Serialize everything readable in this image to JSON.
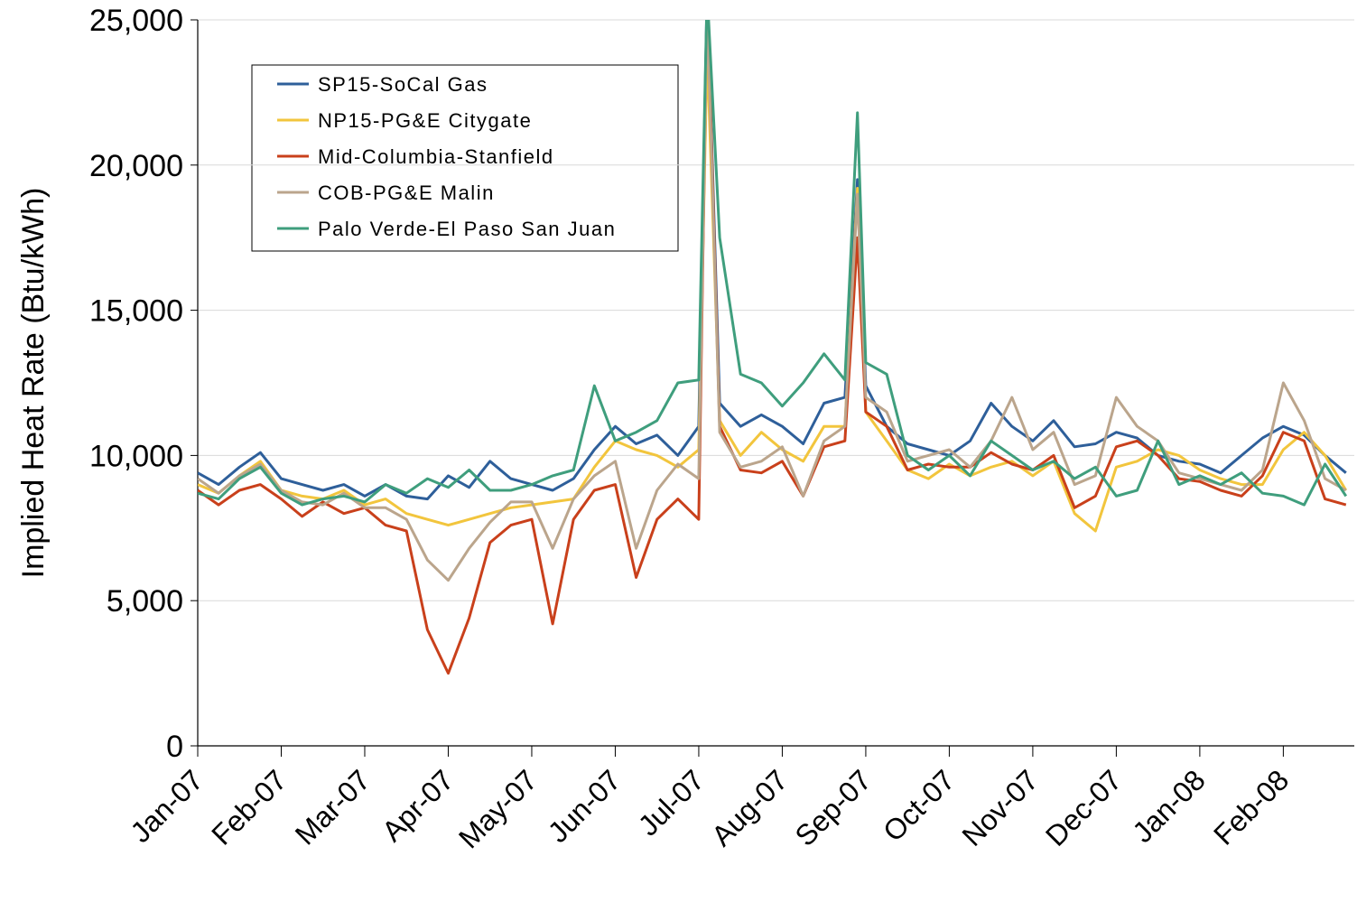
{
  "chart_data": {
    "type": "line",
    "y_label": "Implied Heat Rate (Btu/kWh)",
    "x": [
      0,
      0.25,
      0.5,
      0.75,
      1,
      1.25,
      1.5,
      1.75,
      2,
      2.25,
      2.5,
      2.75,
      3,
      3.25,
      3.5,
      3.75,
      4,
      4.25,
      4.5,
      4.75,
      5,
      5.25,
      5.5,
      5.75,
      6,
      6.1,
      6.25,
      6.5,
      6.75,
      7,
      7.25,
      7.5,
      7.75,
      7.9,
      8,
      8.25,
      8.5,
      8.75,
      9,
      9.25,
      9.5,
      9.75,
      10,
      10.25,
      10.5,
      10.75,
      11,
      11.25,
      11.5,
      11.75,
      12,
      12.25,
      12.5,
      12.75,
      13,
      13.25,
      13.5,
      13.75
    ],
    "xlim": [
      0,
      13.85
    ],
    "xticks": [
      {
        "value": 0,
        "label": "Jan-07"
      },
      {
        "value": 1,
        "label": "Feb-07"
      },
      {
        "value": 2,
        "label": "Mar-07"
      },
      {
        "value": 3,
        "label": "Apr-07"
      },
      {
        "value": 4,
        "label": "May-07"
      },
      {
        "value": 5,
        "label": "Jun-07"
      },
      {
        "value": 6,
        "label": "Jul-07"
      },
      {
        "value": 7,
        "label": "Aug-07"
      },
      {
        "value": 8,
        "label": "Sep-07"
      },
      {
        "value": 9,
        "label": "Oct-07"
      },
      {
        "value": 10,
        "label": "Nov-07"
      },
      {
        "value": 11,
        "label": "Dec-07"
      },
      {
        "value": 12,
        "label": "Jan-08"
      },
      {
        "value": 13,
        "label": "Feb-08"
      }
    ],
    "ylim": [
      0,
      25000
    ],
    "yticks": [
      0,
      {
        "value": 5000,
        "label": "5,000"
      },
      {
        "value": 10000,
        "label": "10,000"
      },
      {
        "value": 15000,
        "label": "15,000"
      },
      {
        "value": 20000,
        "label": "20,000"
      },
      {
        "value": 25000,
        "label": "25,000"
      }
    ],
    "grid": true,
    "legend": "upper-left",
    "series": [
      {
        "name": "SP15-SoCal Gas",
        "color": "#2e5f9a",
        "values": [
          9400,
          9000,
          9600,
          10100,
          9200,
          9000,
          8800,
          9000,
          8600,
          9000,
          8600,
          8500,
          9300,
          8900,
          9800,
          9200,
          9000,
          8800,
          9200,
          10200,
          11000,
          10400,
          10700,
          10000,
          11000,
          26000,
          11800,
          11000,
          11400,
          11000,
          10400,
          11800,
          12000,
          19500,
          12400,
          11000,
          10400,
          10200,
          10000,
          10500,
          11800,
          11000,
          10500,
          11200,
          10300,
          10400,
          10800,
          10600,
          10000,
          9800,
          9700,
          9400,
          10000,
          10600,
          11000,
          10700,
          10000,
          9400
        ]
      },
      {
        "name": "NP15-PG&E Citygate",
        "color": "#f2c53d",
        "values": [
          9000,
          8700,
          9300,
          9800,
          8800,
          8600,
          8500,
          8800,
          8300,
          8500,
          8000,
          7800,
          7600,
          7800,
          8000,
          8200,
          8300,
          8400,
          8500,
          9600,
          10500,
          10200,
          10000,
          9600,
          10200,
          24000,
          11200,
          10000,
          10800,
          10200,
          9800,
          11000,
          11000,
          19200,
          11500,
          10500,
          9500,
          9200,
          9700,
          9300,
          9600,
          9800,
          9300,
          9800,
          8000,
          7400,
          9600,
          9800,
          10200,
          10000,
          9500,
          9200,
          9000,
          9000,
          10200,
          10800,
          10000,
          8800
        ]
      },
      {
        "name": "Mid-Columbia-Stanfield",
        "color": "#c9401b",
        "values": [
          8800,
          8300,
          8800,
          9000,
          8500,
          7900,
          8400,
          8000,
          8200,
          7600,
          7400,
          4000,
          2500,
          4400,
          7000,
          7600,
          7800,
          4200,
          7800,
          8800,
          9000,
          5800,
          7800,
          8500,
          7800,
          26000,
          11000,
          9500,
          9400,
          9800,
          8600,
          10300,
          10500,
          17500,
          11500,
          11000,
          9500,
          9700,
          9600,
          9600,
          10100,
          9700,
          9500,
          10000,
          8200,
          8600,
          10300,
          10500,
          10000,
          9200,
          9100,
          8800,
          8600,
          9300,
          10800,
          10500,
          8500,
          8300
        ]
      },
      {
        "name": "COB-PG&E Malin",
        "color": "#bba58c",
        "values": [
          9200,
          8700,
          9300,
          9700,
          8800,
          8400,
          8300,
          8700,
          8200,
          8200,
          7800,
          6400,
          5700,
          6800,
          7700,
          8400,
          8400,
          6800,
          8500,
          9300,
          9800,
          6800,
          8800,
          9700,
          9200,
          25500,
          10800,
          9600,
          9800,
          10300,
          8600,
          10500,
          11000,
          19000,
          12000,
          11500,
          9800,
          10000,
          10200,
          9600,
          10500,
          12000,
          10200,
          10800,
          9000,
          9300,
          12000,
          11000,
          10500,
          9400,
          9200,
          9000,
          8800,
          9500,
          12500,
          11200,
          9200,
          8800
        ]
      },
      {
        "name": "Palo Verde-El Paso San Juan",
        "color": "#3f9e7d",
        "values": [
          8700,
          8500,
          9200,
          9600,
          8700,
          8300,
          8500,
          8600,
          8400,
          9000,
          8700,
          9200,
          8900,
          9500,
          8800,
          8800,
          9000,
          9300,
          9500,
          12400,
          10500,
          10800,
          11200,
          12500,
          12600,
          26000,
          17500,
          12800,
          12500,
          11700,
          12500,
          13500,
          12600,
          21800,
          13200,
          12800,
          10000,
          9500,
          10000,
          9300,
          10500,
          10000,
          9500,
          9800,
          9200,
          9600,
          8600,
          8800,
          10500,
          9000,
          9300,
          9000,
          9400,
          8700,
          8600,
          8300,
          9700,
          8600
        ]
      }
    ]
  }
}
